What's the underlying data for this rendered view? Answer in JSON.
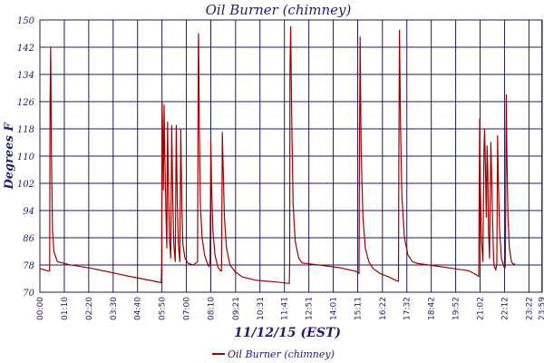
{
  "chart_data": {
    "type": "line",
    "title": "Oil Burner (chimney)",
    "xlabel": "11/12/15 (EST)",
    "ylabel": "Degrees F",
    "ylim": [
      70,
      150
    ],
    "yticks": [
      70,
      78,
      86,
      94,
      102,
      110,
      118,
      126,
      134,
      142,
      150
    ],
    "xlim": [
      0,
      1440
    ],
    "x_unit": "minutes since 00:00",
    "xtick_labels": [
      "00:00",
      "01:10",
      "02:20",
      "03:30",
      "04:40",
      "05:50",
      "07:00",
      "08:10",
      "09:21",
      "10:31",
      "11:41",
      "12:51",
      "14:01",
      "15:11",
      "16:22",
      "17:32",
      "18:42",
      "19:52",
      "21:02",
      "22:12",
      "23:22",
      "23:59"
    ],
    "xtick_values": [
      0,
      70,
      140,
      210,
      280,
      350,
      420,
      490,
      561,
      631,
      701,
      771,
      841,
      911,
      982,
      1052,
      1122,
      1192,
      1262,
      1332,
      1402,
      1439
    ],
    "grid": true,
    "legend": "bottom",
    "series": [
      {
        "name": "Oil Burner (chimney)",
        "color": "#a00000",
        "points": [
          [
            0,
            77
          ],
          [
            25,
            76.2
          ],
          [
            28,
            76.3
          ],
          [
            29,
            125
          ],
          [
            31,
            142
          ],
          [
            33,
            112
          ],
          [
            36,
            88
          ],
          [
            40,
            82
          ],
          [
            50,
            79
          ],
          [
            80,
            78.2
          ],
          [
            150,
            77
          ],
          [
            250,
            74.8
          ],
          [
            330,
            73.2
          ],
          [
            348,
            72.8
          ],
          [
            349,
            78
          ],
          [
            350,
            126
          ],
          [
            352,
            117
          ],
          [
            354,
            100
          ],
          [
            356,
            125
          ],
          [
            358,
            112
          ],
          [
            361,
            95
          ],
          [
            364,
            83
          ],
          [
            366,
            120
          ],
          [
            369,
            98
          ],
          [
            372,
            85
          ],
          [
            375,
            80
          ],
          [
            378,
            119
          ],
          [
            381,
            97
          ],
          [
            384,
            84
          ],
          [
            388,
            79
          ],
          [
            391,
            119
          ],
          [
            394,
            96
          ],
          [
            397,
            84
          ],
          [
            401,
            79
          ],
          [
            404,
            118
          ],
          [
            407,
            95
          ],
          [
            410,
            84
          ],
          [
            416,
            80
          ],
          [
            425,
            78.5
          ],
          [
            440,
            78
          ],
          [
            452,
            79
          ],
          [
            454,
            140
          ],
          [
            455,
            146
          ],
          [
            457,
            120
          ],
          [
            460,
            96
          ],
          [
            465,
            86
          ],
          [
            472,
            81
          ],
          [
            480,
            78.5
          ],
          [
            485,
            77.5
          ],
          [
            488,
            79
          ],
          [
            490,
            115
          ],
          [
            492,
            102
          ],
          [
            496,
            88
          ],
          [
            502,
            81
          ],
          [
            510,
            77.5
          ],
          [
            516,
            76.5
          ],
          [
            520,
            76.2
          ],
          [
            521,
            79
          ],
          [
            523,
            117
          ],
          [
            525,
            108
          ],
          [
            529,
            92
          ],
          [
            535,
            83
          ],
          [
            545,
            78
          ],
          [
            560,
            76
          ],
          [
            580,
            74.5
          ],
          [
            620,
            73.5
          ],
          [
            680,
            73
          ],
          [
            715,
            72.6
          ],
          [
            716,
            78
          ],
          [
            717,
            135
          ],
          [
            719,
            148
          ],
          [
            722,
            120
          ],
          [
            726,
            96
          ],
          [
            732,
            85
          ],
          [
            742,
            80
          ],
          [
            752,
            78.6
          ],
          [
            800,
            78
          ],
          [
            860,
            77.2
          ],
          [
            905,
            76.2
          ],
          [
            915,
            75.5
          ],
          [
            916,
            108
          ],
          [
            918,
            145
          ],
          [
            921,
            112
          ],
          [
            926,
            92
          ],
          [
            933,
            83
          ],
          [
            943,
            79
          ],
          [
            955,
            77
          ],
          [
            975,
            75.5
          ],
          [
            1000,
            74.5
          ],
          [
            1020,
            73.5
          ],
          [
            1028,
            73.2
          ],
          [
            1029,
            110
          ],
          [
            1031,
            147
          ],
          [
            1034,
            118
          ],
          [
            1038,
            98
          ],
          [
            1045,
            86
          ],
          [
            1055,
            81
          ],
          [
            1068,
            79
          ],
          [
            1080,
            78.5
          ],
          [
            1150,
            77.5
          ],
          [
            1230,
            76.3
          ],
          [
            1250,
            75.2
          ],
          [
            1258,
            74.6
          ],
          [
            1259,
            94
          ],
          [
            1261,
            121
          ],
          [
            1263,
            100
          ],
          [
            1266,
            85
          ],
          [
            1270,
            79
          ],
          [
            1273,
            112
          ],
          [
            1275,
            118
          ],
          [
            1277,
            108
          ],
          [
            1280,
            92
          ],
          [
            1282,
            113
          ],
          [
            1284,
            106
          ],
          [
            1286,
            88
          ],
          [
            1289,
            80
          ],
          [
            1293,
            114
          ],
          [
            1295,
            105
          ],
          [
            1298,
            90
          ],
          [
            1301,
            79
          ],
          [
            1303,
            77.5
          ],
          [
            1307,
            76.5
          ],
          [
            1310,
            78.5
          ],
          [
            1312,
            116
          ],
          [
            1314,
            104
          ],
          [
            1318,
            88
          ],
          [
            1323,
            80
          ],
          [
            1330,
            77.5
          ],
          [
            1334,
            77.2
          ],
          [
            1335,
            88
          ],
          [
            1337,
            128
          ],
          [
            1339,
            110
          ],
          [
            1342,
            92
          ],
          [
            1346,
            83
          ],
          [
            1352,
            79
          ],
          [
            1358,
            78
          ],
          [
            1362,
            78.5
          ]
        ]
      }
    ]
  },
  "legend": {
    "label": "Oil Burner (chimney)"
  }
}
